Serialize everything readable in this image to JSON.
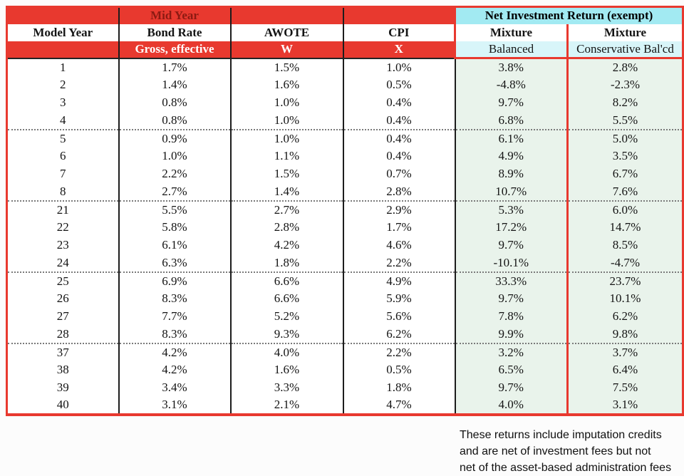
{
  "colors": {
    "red": "#e8392f",
    "dark_red_text": "#8c1a12",
    "cyan_header": "#a2eaf2",
    "cyan_subheader": "#d8f5f9",
    "green_body": "#e9f3eb"
  },
  "table": {
    "top_header": {
      "mid_year_label": "Mid Year",
      "net_investment_label": "Net Investment Return (exempt)"
    },
    "column_headers": {
      "model_year": "Model Year",
      "bond_rate": "Bond Rate",
      "awote": "AWOTE",
      "cpi": "CPI",
      "mixture_1": "Mixture",
      "mixture_2": "Mixture"
    },
    "sub_headers": {
      "bond_rate_sub": "Gross, effective",
      "awote_sub": "W",
      "cpi_sub": "X",
      "mixture_1_sub": "Balanced",
      "mixture_2_sub": "Conservative Bal'cd"
    }
  },
  "chart_data": {
    "type": "table",
    "title": "Net Investment Return (exempt)",
    "columns": [
      "Model Year",
      "Bond Rate (Mid Year, Gross, effective)",
      "AWOTE (W)",
      "CPI (X)",
      "Mixture Balanced",
      "Mixture Conservative Bal'cd"
    ],
    "group_breaks_after_row_index": [
      3,
      7,
      11,
      15
    ],
    "rows": [
      [
        "1",
        "1.7%",
        "1.5%",
        "1.0%",
        "3.8%",
        "2.8%"
      ],
      [
        "2",
        "1.4%",
        "1.6%",
        "0.5%",
        "-4.8%",
        "-2.3%"
      ],
      [
        "3",
        "0.8%",
        "1.0%",
        "0.4%",
        "9.7%",
        "8.2%"
      ],
      [
        "4",
        "0.8%",
        "1.0%",
        "0.4%",
        "6.8%",
        "5.5%"
      ],
      [
        "5",
        "0.9%",
        "1.0%",
        "0.4%",
        "6.1%",
        "5.0%"
      ],
      [
        "6",
        "1.0%",
        "1.1%",
        "0.4%",
        "4.9%",
        "3.5%"
      ],
      [
        "7",
        "2.2%",
        "1.5%",
        "0.7%",
        "8.9%",
        "6.7%"
      ],
      [
        "8",
        "2.7%",
        "1.4%",
        "2.8%",
        "10.7%",
        "7.6%"
      ],
      [
        "21",
        "5.5%",
        "2.7%",
        "2.9%",
        "5.3%",
        "6.0%"
      ],
      [
        "22",
        "5.8%",
        "2.8%",
        "1.7%",
        "17.2%",
        "14.7%"
      ],
      [
        "23",
        "6.1%",
        "4.2%",
        "4.6%",
        "9.7%",
        "8.5%"
      ],
      [
        "24",
        "6.3%",
        "1.8%",
        "2.2%",
        "-10.1%",
        "-4.7%"
      ],
      [
        "25",
        "6.9%",
        "6.6%",
        "4.9%",
        "33.3%",
        "23.7%"
      ],
      [
        "26",
        "8.3%",
        "6.6%",
        "5.9%",
        "9.7%",
        "10.1%"
      ],
      [
        "27",
        "7.7%",
        "5.2%",
        "5.6%",
        "7.8%",
        "6.2%"
      ],
      [
        "28",
        "8.3%",
        "9.3%",
        "6.2%",
        "9.9%",
        "9.8%"
      ],
      [
        "37",
        "4.2%",
        "4.0%",
        "2.2%",
        "3.2%",
        "3.7%"
      ],
      [
        "38",
        "4.2%",
        "1.6%",
        "0.5%",
        "6.5%",
        "6.4%"
      ],
      [
        "39",
        "3.4%",
        "3.3%",
        "1.8%",
        "9.7%",
        "7.5%"
      ],
      [
        "40",
        "3.1%",
        "2.1%",
        "4.7%",
        "4.0%",
        "3.1%"
      ]
    ]
  },
  "footnote": {
    "line1": "These returns include imputation credits",
    "line2": "and are net of investment fees but not",
    "line3": "net of the asset-based administration fees"
  }
}
